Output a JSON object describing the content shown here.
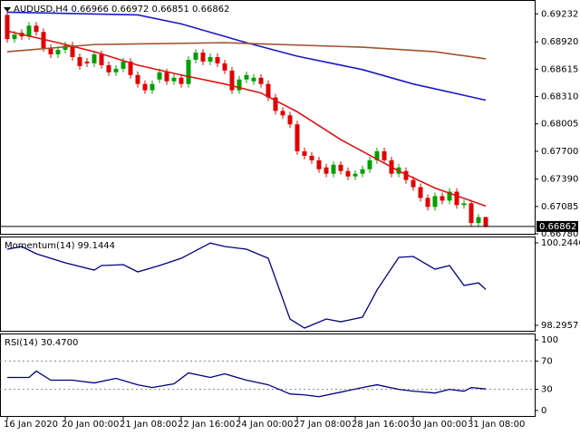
{
  "chart_data": [
    {
      "type": "candlestick",
      "title": "AUDUSD,H4  0.66966 0.66972 0.66851 0.66862",
      "categories": [
        "16 Jan 2020",
        null,
        null,
        null,
        null,
        null,
        null,
        null,
        "20 Jan 00:00",
        null,
        null,
        null,
        null,
        null,
        null,
        null,
        "21 Jan 08:00",
        null,
        null,
        null,
        null,
        null,
        null,
        null,
        "22 Jan 16:00",
        null,
        null,
        null,
        null,
        null,
        null,
        null,
        "24 Jan 00:00",
        null,
        null,
        null,
        null,
        null,
        null,
        null,
        "27 Jan 08:00",
        null,
        null,
        null,
        null,
        null,
        null,
        null,
        "28 Jan 16:00",
        null,
        null,
        null,
        null,
        null,
        null,
        null,
        "30 Jan 00:00",
        null,
        null,
        null,
        null,
        null,
        null,
        null,
        "31 Jan 08:00",
        null,
        null
      ],
      "open": [
        0.6922,
        0.6895,
        0.6902,
        0.6898,
        0.691,
        0.6903,
        0.6885,
        0.6878,
        0.6883,
        0.6888,
        0.6875,
        0.687,
        0.6868,
        0.6878,
        0.6866,
        0.6858,
        0.6862,
        0.687,
        0.6855,
        0.6845,
        0.6838,
        0.685,
        0.6858,
        0.6848,
        0.6852,
        0.6845,
        0.6872,
        0.688,
        0.687,
        0.6875,
        0.6868,
        0.686,
        0.6838,
        0.685,
        0.6848,
        0.6852,
        0.6845,
        0.683,
        0.6815,
        0.681,
        0.68,
        0.677,
        0.6765,
        0.676,
        0.6752,
        0.6745,
        0.6755,
        0.6748,
        0.6742,
        0.6745,
        0.675,
        0.676,
        0.677,
        0.676,
        0.6745,
        0.6748,
        0.6738,
        0.673,
        0.6718,
        0.6708,
        0.672,
        0.6715,
        0.6725,
        0.671,
        0.6712,
        0.669,
        0.66966
      ],
      "high": [
        0.6926,
        0.6904,
        0.6906,
        0.6914,
        0.6914,
        0.6907,
        0.6889,
        0.6887,
        0.6892,
        0.6892,
        0.6879,
        0.6874,
        0.6882,
        0.6882,
        0.687,
        0.6866,
        0.6874,
        0.6874,
        0.6859,
        0.6849,
        0.6849,
        0.6862,
        0.6862,
        0.6856,
        0.6856,
        0.6876,
        0.6884,
        0.6884,
        0.6879,
        0.6879,
        0.6872,
        0.6864,
        0.6854,
        0.6859,
        0.6856,
        0.6856,
        0.6849,
        0.6834,
        0.6819,
        0.6814,
        0.6804,
        0.6774,
        0.6769,
        0.6764,
        0.6756,
        0.6759,
        0.6759,
        0.6752,
        0.6749,
        0.6754,
        0.6764,
        0.6774,
        0.6774,
        0.6764,
        0.6756,
        0.6752,
        0.6742,
        0.6734,
        0.6722,
        0.6724,
        0.6724,
        0.6729,
        0.6729,
        0.6716,
        0.6716,
        0.67,
        0.66972
      ],
      "low": [
        0.6891,
        0.6891,
        0.6894,
        0.6894,
        0.6899,
        0.6881,
        0.6874,
        0.6874,
        0.6879,
        0.6871,
        0.6861,
        0.6864,
        0.6864,
        0.6862,
        0.6854,
        0.6854,
        0.6858,
        0.6851,
        0.6841,
        0.6834,
        0.6834,
        0.6846,
        0.6844,
        0.6844,
        0.6841,
        0.6841,
        0.6868,
        0.6866,
        0.6866,
        0.6864,
        0.6856,
        0.6834,
        0.6834,
        0.6846,
        0.6844,
        0.6841,
        0.6826,
        0.6811,
        0.6806,
        0.6796,
        0.6766,
        0.6761,
        0.6756,
        0.6746,
        0.6741,
        0.6741,
        0.6744,
        0.6738,
        0.6738,
        0.6741,
        0.6746,
        0.6756,
        0.6756,
        0.6741,
        0.6741,
        0.6734,
        0.6726,
        0.6714,
        0.6704,
        0.6704,
        0.6711,
        0.6711,
        0.6706,
        0.6706,
        0.6686,
        0.6686,
        0.66851
      ],
      "close": [
        0.6895,
        0.69,
        0.6898,
        0.691,
        0.6903,
        0.6885,
        0.6878,
        0.6883,
        0.6888,
        0.6875,
        0.6865,
        0.6868,
        0.6878,
        0.6866,
        0.6858,
        0.6862,
        0.687,
        0.6855,
        0.6845,
        0.6838,
        0.6845,
        0.6858,
        0.6848,
        0.6852,
        0.6845,
        0.6872,
        0.688,
        0.687,
        0.6875,
        0.6868,
        0.686,
        0.6838,
        0.685,
        0.6855,
        0.6852,
        0.6845,
        0.683,
        0.6815,
        0.681,
        0.68,
        0.677,
        0.6765,
        0.676,
        0.675,
        0.6745,
        0.6755,
        0.6748,
        0.6742,
        0.6745,
        0.675,
        0.676,
        0.677,
        0.676,
        0.6745,
        0.6752,
        0.6738,
        0.673,
        0.6718,
        0.6708,
        0.672,
        0.6715,
        0.6725,
        0.671,
        0.6712,
        0.669,
        0.66966,
        0.66862
      ],
      "up_color": "#00a000",
      "down_color": "#e00000",
      "series": [
        {
          "color": "#e01010",
          "x": [
            0,
            7,
            12,
            18,
            24,
            30,
            35,
            40,
            46,
            54,
            59,
            66
          ],
          "values": [
            0.6904,
            0.6891,
            0.6881,
            0.6866,
            0.6855,
            0.6845,
            0.6835,
            0.6814,
            0.6783,
            0.6748,
            0.6729,
            0.6709
          ]
        },
        {
          "color": "#1a1ac8",
          "x": [
            0,
            18,
            24,
            33,
            40,
            49,
            56,
            66
          ],
          "values": [
            0.6925,
            0.6922,
            0.6912,
            0.6891,
            0.6876,
            0.6861,
            0.6845,
            0.6827
          ]
        },
        {
          "color": "#a0522d",
          "x": [
            0,
            12,
            30,
            49,
            59,
            66
          ],
          "values": [
            0.6881,
            0.6889,
            0.6891,
            0.6886,
            0.6881,
            0.6873
          ]
        }
      ],
      "last_price": 0.66862,
      "ylim": [
        0.6677,
        0.69376
      ],
      "yticks": [
        0.69232,
        {
          "value": 0.6892,
          "label": "0.68920"
        },
        0.68615,
        {
          "value": 0.6831,
          "label": "0.68310"
        },
        0.68005,
        {
          "value": 0.677,
          "label": "0.67700"
        },
        {
          "value": 0.6739,
          "label": "0.67390"
        },
        0.67085,
        {
          "value": 0.6678,
          "label": "0.66780"
        }
      ]
    },
    {
      "type": "line",
      "title": "Momentum(14) 99.1444",
      "series": [
        {
          "color": "#000080",
          "x": [
            0,
            2,
            4,
            8,
            12,
            13,
            16,
            18,
            21,
            24,
            28,
            30,
            33,
            36,
            39,
            41,
            44,
            46,
            49,
            51,
            54,
            56,
            59,
            61,
            63,
            65,
            66
          ],
          "values": [
            100.095,
            100.159,
            99.988,
            99.773,
            99.602,
            99.709,
            99.73,
            99.559,
            99.709,
            99.88,
            100.24,
            100.159,
            100.095,
            99.88,
            98.445,
            98.231,
            98.445,
            98.381,
            98.488,
            99.13,
            99.902,
            99.923,
            99.623,
            99.709,
            99.238,
            99.3,
            99.1444
          ]
        }
      ],
      "ylim": [
        98.146,
        100.373
      ],
      "yticks": [
        100.2446,
        98.2957
      ]
    },
    {
      "type": "line",
      "title": "RSI(14) 30.4700",
      "series": [
        {
          "color": "#000080",
          "x": [
            0,
            3,
            4,
            6,
            9,
            12,
            15,
            18,
            20,
            23,
            25,
            28,
            30,
            33,
            36,
            39,
            41,
            43,
            46,
            49,
            51,
            54,
            56,
            59,
            61,
            63,
            64,
            66
          ],
          "values": [
            46.8,
            46.8,
            55.8,
            42.9,
            42.9,
            39,
            45.5,
            36.4,
            32.5,
            37.7,
            53.2,
            46.8,
            51.9,
            42.9,
            36.4,
            23.4,
            22.1,
            19.5,
            26,
            32.5,
            36.4,
            29.9,
            27.3,
            24.7,
            29.9,
            27.3,
            32.5,
            30.47
          ]
        }
      ],
      "levels": [
        70,
        30
      ],
      "ylim": [
        -9.1,
        107.8
      ],
      "yticks": [
        100,
        70,
        30,
        0
      ]
    }
  ]
}
